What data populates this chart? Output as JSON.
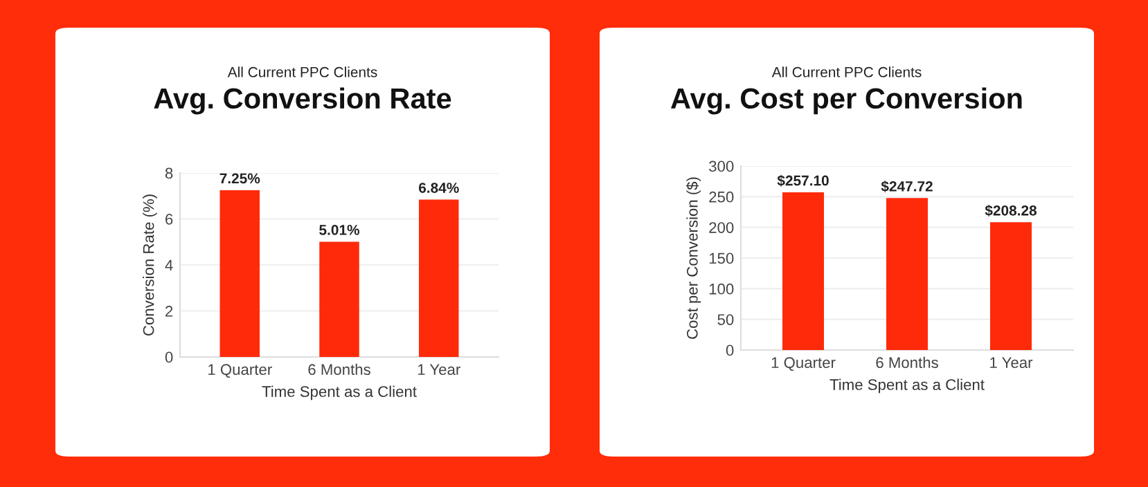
{
  "chart_data": [
    {
      "type": "bar",
      "subtitle": "All Current PPC Clients",
      "title": "Avg. Conversion Rate",
      "xlabel": "Time Spent as a Client",
      "ylabel": "Conversion Rate (%)",
      "categories": [
        "1 Quarter",
        "6 Months",
        "1 Year"
      ],
      "values": [
        7.25,
        5.01,
        6.84
      ],
      "value_labels": [
        "7.25%",
        "5.01%",
        "6.84%"
      ],
      "color": "#ff2a0a",
      "ylim": [
        0,
        8
      ],
      "yticks": [
        0,
        2,
        4,
        6,
        8
      ],
      "grid": "y"
    },
    {
      "type": "bar",
      "subtitle": "All Current PPC Clients",
      "title": "Avg. Cost per Conversion",
      "xlabel": "Time Spent as a Client",
      "ylabel": "Cost per Conversion ($)",
      "categories": [
        "1 Quarter",
        "6 Months",
        "1 Year"
      ],
      "values": [
        257.1,
        247.72,
        208.28
      ],
      "value_labels": [
        "$257.10",
        "$247.72",
        "$208.28"
      ],
      "color": "#ff2a0a",
      "ylim": [
        0,
        300
      ],
      "yticks": [
        0,
        50,
        100,
        150,
        200,
        250,
        300
      ],
      "grid": "y"
    }
  ]
}
